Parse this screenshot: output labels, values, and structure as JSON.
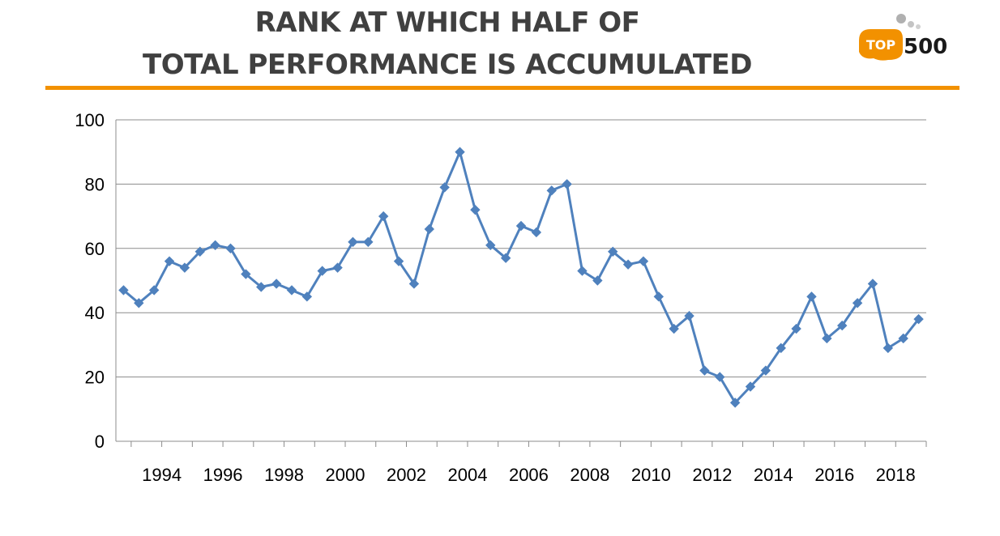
{
  "header": {
    "title_line1": "RANK AT WHICH HALF OF",
    "title_line2": "TOTAL PERFORMANCE IS ACCUMULATED",
    "logo_top": "TOP",
    "logo_500": "500",
    "accent_color": "#f29100"
  },
  "chart_data": {
    "type": "line",
    "title": "RANK AT WHICH HALF OF TOTAL PERFORMANCE IS ACCUMULATED",
    "ylim": [
      0,
      100
    ],
    "yticks": [
      0,
      20,
      40,
      60,
      80,
      100
    ],
    "xtick_labels": [
      "1994",
      "1996",
      "1998",
      "2000",
      "2002",
      "2004",
      "2006",
      "2008",
      "2010",
      "2012",
      "2014",
      "2016",
      "2018"
    ],
    "grid": true,
    "line_color": "#4f81bd",
    "marker": "diamond",
    "x": [
      "1993-06",
      "1993-11",
      "1994-06",
      "1994-11",
      "1995-06",
      "1995-11",
      "1996-06",
      "1996-11",
      "1997-06",
      "1997-11",
      "1998-06",
      "1998-11",
      "1999-06",
      "1999-11",
      "2000-06",
      "2000-11",
      "2001-06",
      "2001-11",
      "2002-06",
      "2002-11",
      "2003-06",
      "2003-11",
      "2004-06",
      "2004-11",
      "2005-06",
      "2005-11",
      "2006-06",
      "2006-11",
      "2007-06",
      "2007-11",
      "2008-06",
      "2008-11",
      "2009-06",
      "2009-11",
      "2010-06",
      "2010-11",
      "2011-06",
      "2011-11",
      "2012-06",
      "2012-11",
      "2013-06",
      "2013-11",
      "2014-06",
      "2014-11",
      "2015-06",
      "2015-11",
      "2016-06",
      "2016-11",
      "2017-06",
      "2017-11",
      "2018-06",
      "2018-11",
      "2019-06"
    ],
    "values": [
      47,
      43,
      47,
      56,
      54,
      59,
      61,
      60,
      52,
      48,
      49,
      47,
      45,
      53,
      54,
      62,
      62,
      70,
      56,
      49,
      66,
      79,
      90,
      72,
      61,
      57,
      67,
      65,
      78,
      80,
      53,
      50,
      59,
      55,
      56,
      45,
      35,
      39,
      22,
      20,
      12,
      17,
      22,
      29,
      35,
      45,
      32,
      36,
      43,
      49,
      29,
      32,
      38
    ]
  }
}
